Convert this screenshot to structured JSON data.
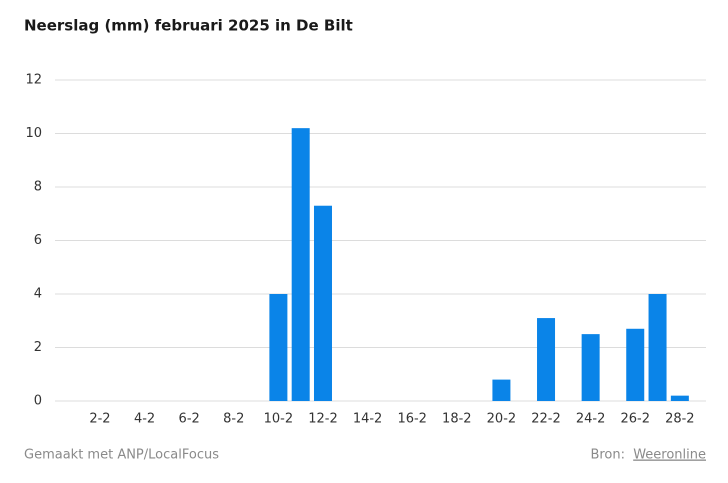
{
  "chart_data": {
    "type": "bar",
    "title": "Neerslag (mm) februari 2025 in De Bilt",
    "categories": [
      null,
      "2-2",
      null,
      "4-2",
      null,
      "6-2",
      null,
      "8-2",
      null,
      "10-2",
      null,
      "12-2",
      null,
      "14-2",
      null,
      "16-2",
      null,
      "18-2",
      null,
      "20-2",
      null,
      "22-2",
      null,
      "24-2",
      null,
      "26-2",
      null,
      "28-2"
    ],
    "values": [
      0,
      0,
      0,
      0,
      0,
      0,
      0,
      0,
      0,
      4.0,
      10.2,
      7.3,
      0,
      0,
      0,
      0,
      0,
      0,
      0,
      0.8,
      0,
      3.1,
      0,
      2.5,
      0,
      2.7,
      4.0,
      0.2
    ],
    "color": "#0a84e8",
    "ylim": [
      0,
      12
    ],
    "yticks": [
      0,
      2,
      4,
      6,
      8,
      10,
      12
    ],
    "grid": true
  },
  "footer": {
    "made_with": "Gemaakt met ANP/LocalFocus",
    "source_label": "Bron:",
    "source": "Weeronline"
  }
}
